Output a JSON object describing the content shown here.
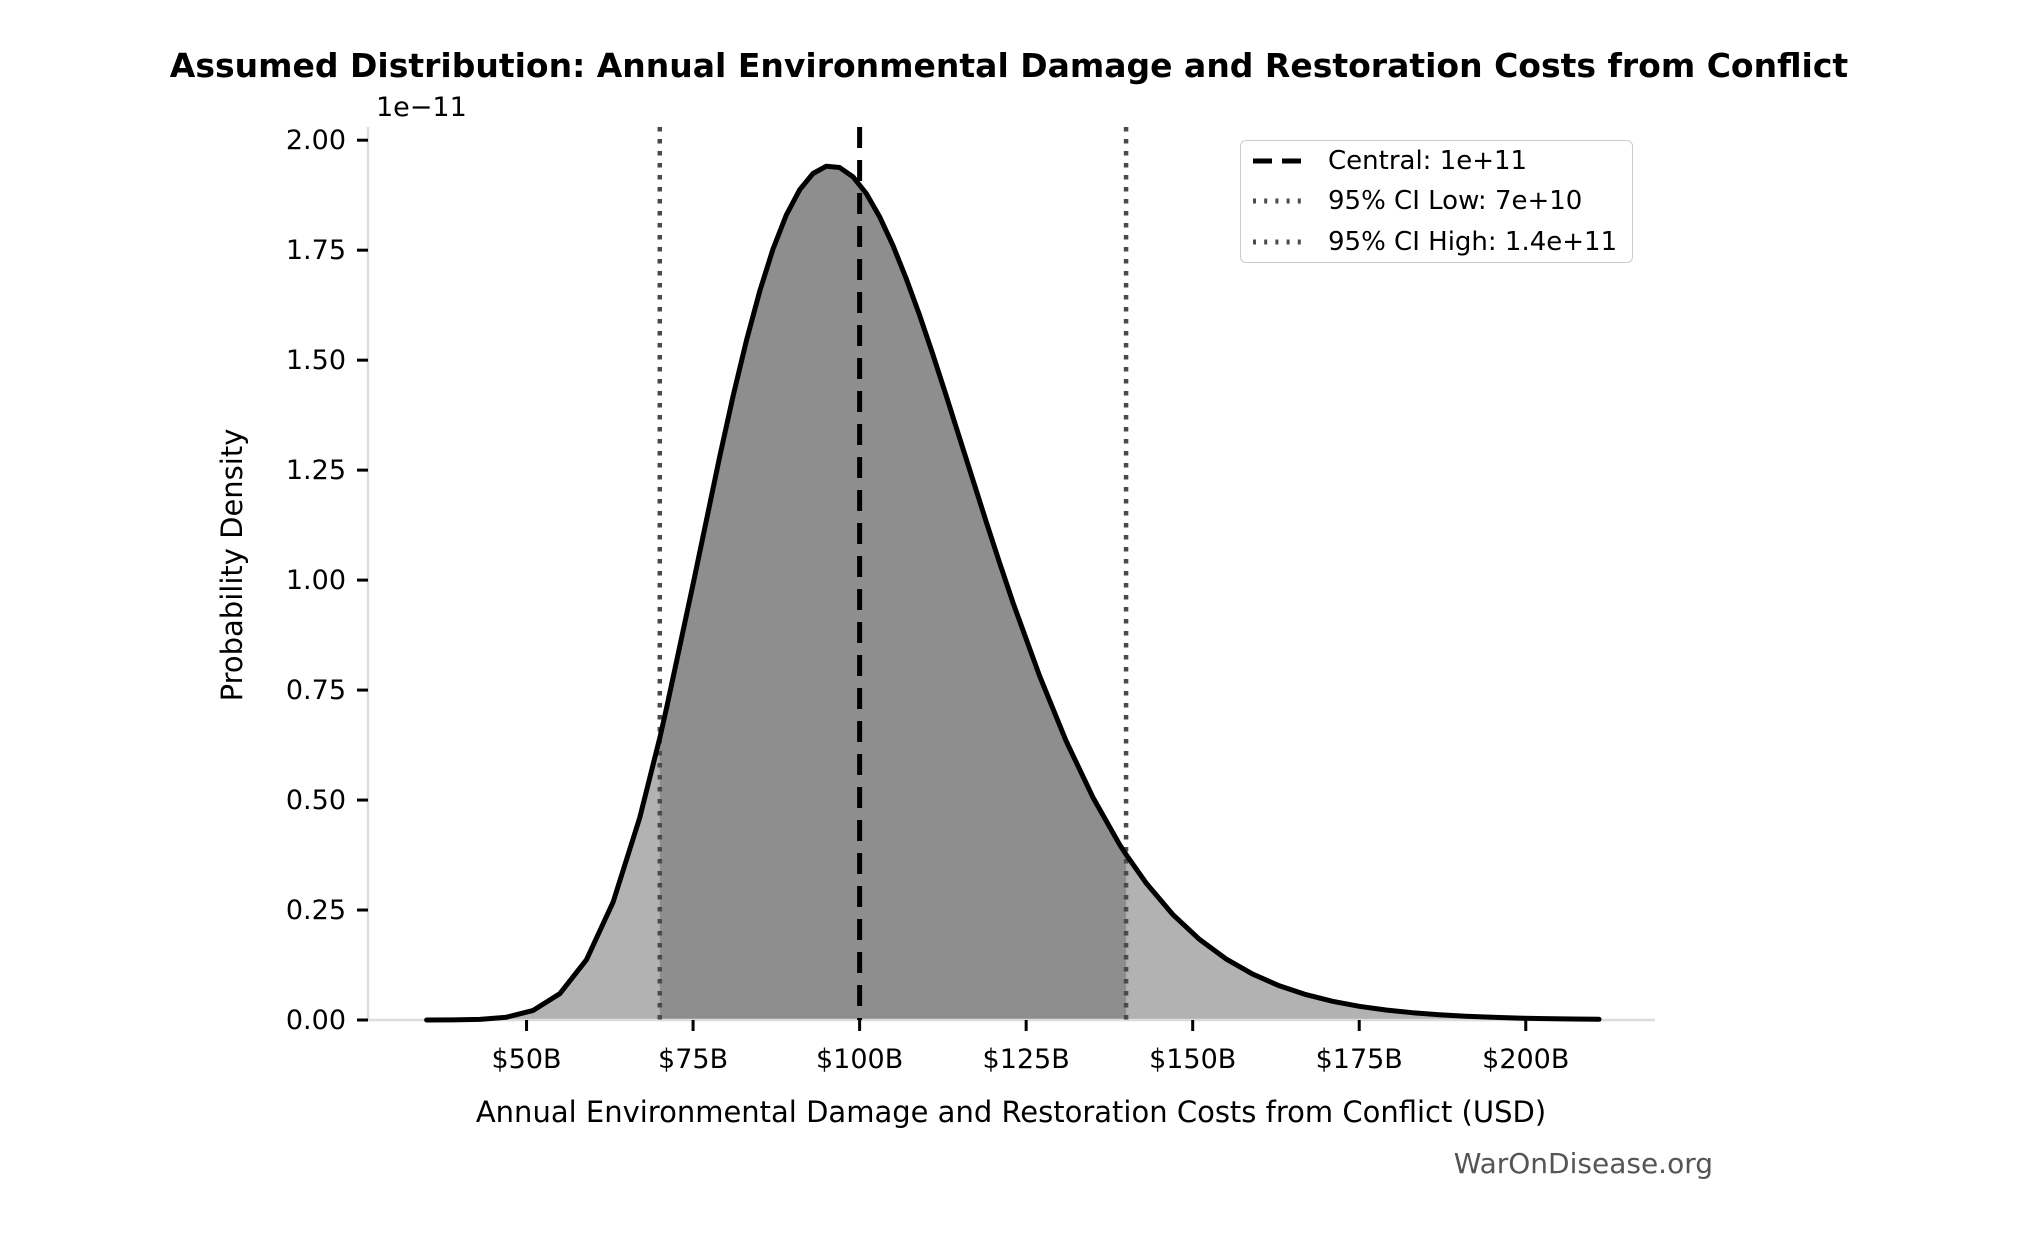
{
  "chart_data": {
    "type": "area",
    "title": "Assumed Distribution: Annual Environmental Damage and Restoration Costs from Conflict",
    "xlabel": "Annual Environmental Damage and Restoration Costs from Conflict (USD)",
    "ylabel": "Probability Density",
    "y_axis_offset_text": "1e−11",
    "watermark": "WarOnDisease.org",
    "grid": false,
    "legend_position": "upper right",
    "xlim_billions": [
      26.2,
      219.4
    ],
    "ylim_1e11": [
      0,
      2.03
    ],
    "x_ticks": [
      {
        "value": 50,
        "label": "$50B"
      },
      {
        "value": 75,
        "label": "$75B"
      },
      {
        "value": 100,
        "label": "$100B"
      },
      {
        "value": 125,
        "label": "$125B"
      },
      {
        "value": 150,
        "label": "$150B"
      },
      {
        "value": 175,
        "label": "$175B"
      },
      {
        "value": 200,
        "label": "$200B"
      }
    ],
    "y_ticks": [
      {
        "value": 0,
        "label": "0.00"
      },
      {
        "value": 0.25,
        "label": "0.25"
      },
      {
        "value": 0.5,
        "label": "0.50"
      },
      {
        "value": 0.75,
        "label": "0.75"
      },
      {
        "value": 1,
        "label": "1.00"
      },
      {
        "value": 1.25,
        "label": "1.25"
      },
      {
        "value": 1.5,
        "label": "1.50"
      },
      {
        "value": 1.75,
        "label": "1.75"
      },
      {
        "value": 2,
        "label": "2.00"
      }
    ],
    "central_billions": 100,
    "ci_low_billions": 70,
    "ci_high_billions": 140,
    "legend": [
      {
        "label": "Central: 1e+11",
        "style": "dashed",
        "color": "#000000"
      },
      {
        "label": "95% CI Low: 7e+10",
        "style": "dotted",
        "color": "#4a4a4a"
      },
      {
        "label": "95% CI High: 1.4e+11",
        "style": "dotted",
        "color": "#4a4a4a"
      }
    ],
    "curve": {
      "x_billions": [
        35,
        39,
        43,
        47,
        51,
        55,
        59,
        63,
        67,
        70,
        71,
        75,
        79,
        81,
        83,
        85,
        87,
        89,
        91,
        93,
        95,
        97,
        99,
        101,
        103,
        105,
        107,
        109,
        111,
        113,
        115,
        117,
        119,
        121,
        123,
        127,
        131,
        135,
        139,
        140,
        143,
        147,
        151,
        155,
        159,
        163,
        167,
        171,
        175,
        179,
        183,
        187,
        191,
        195,
        199,
        203,
        207,
        211
      ],
      "density_1e11": [
        0.0,
        0.0002,
        0.0014,
        0.0063,
        0.0218,
        0.0601,
        0.137,
        0.268,
        0.4603,
        0.6414,
        0.7077,
        0.9912,
        1.2807,
        1.4177,
        1.5441,
        1.6566,
        1.7526,
        1.8299,
        1.8874,
        1.9243,
        1.9409,
        1.938,
        1.9167,
        1.8788,
        1.8262,
        1.7611,
        1.6857,
        1.6021,
        1.5127,
        1.4193,
        1.3238,
        1.2278,
        1.1327,
        1.0399,
        0.95,
        0.7826,
        0.6344,
        0.5068,
        0.3997,
        0.3759,
        0.3115,
        0.2401,
        0.1835,
        0.1389,
        0.1043,
        0.0778,
        0.0577,
        0.0425,
        0.0312,
        0.0227,
        0.0165,
        0.012,
        0.0086,
        0.0062,
        0.0044,
        0.0032,
        0.0023,
        0.0016
      ]
    },
    "colors": {
      "curve": "#000000",
      "fill_light": "#b2b2b2",
      "fill_dark": "#8e8e8e",
      "central_line": "#000000",
      "ci_line": "#4a4a4a",
      "spine": "#dcdcdc",
      "tick": "#000000",
      "text": "#000000",
      "legend_border": "#cccccc",
      "watermark_text": "#555555"
    }
  }
}
